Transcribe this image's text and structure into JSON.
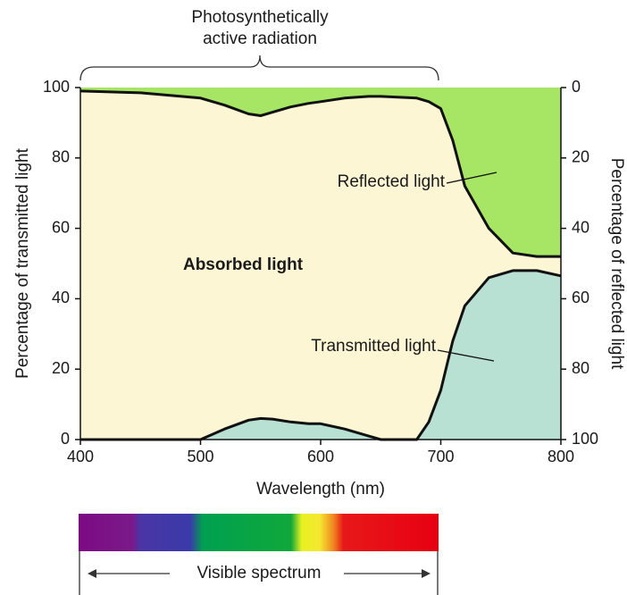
{
  "chart_data": {
    "type": "area",
    "xlabel": "Wavelength (nm)",
    "ylabel": "Percentage of transmitted light",
    "y2label": "Percentage of reflected light",
    "x": [
      400,
      450,
      500,
      520,
      540,
      550,
      560,
      575,
      590,
      600,
      620,
      640,
      650,
      680,
      690,
      700,
      710,
      720,
      740,
      760,
      780,
      800
    ],
    "series": [
      {
        "name": "Transmitted light",
        "color": "#b8e1d4",
        "axis": "y",
        "values": [
          0,
          0,
          0,
          3,
          5.5,
          6,
          5.8,
          5,
          4.5,
          4.5,
          3,
          1,
          0,
          0,
          5,
          14,
          28,
          38,
          46,
          48,
          48,
          46.5
        ]
      },
      {
        "name": "Reflected light",
        "color": "#a7e565",
        "axis": "y2",
        "values": [
          1,
          1.5,
          3,
          5,
          7.5,
          8,
          7,
          5.5,
          4.5,
          4,
          3,
          2.5,
          2.5,
          3,
          4,
          6,
          15,
          28,
          40,
          47,
          48,
          48
        ]
      }
    ],
    "background_color": "#fdf6d4",
    "xlim": [
      400,
      800
    ],
    "xticks": [
      400,
      500,
      600,
      700,
      800
    ],
    "ylim": [
      0,
      100
    ],
    "yticks": [
      0,
      20,
      40,
      60,
      80,
      100
    ],
    "y2lim": [
      100,
      0
    ],
    "y2ticks": [
      0,
      20,
      40,
      60,
      80,
      100
    ],
    "annotations": {
      "region": "Absorbed light",
      "bracket": "Photosynthetically active radiation",
      "spectrum": "Visible spectrum"
    }
  }
}
